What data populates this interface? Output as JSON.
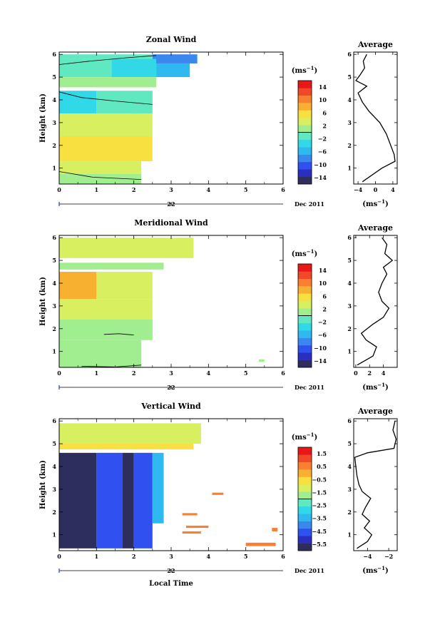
{
  "figure": {
    "xlabel": "Local Time",
    "date_label": "Dec 2011",
    "date_day": "22",
    "unit_label": "(ms",
    "unit_exp": "−1",
    "unit_close": ")",
    "average_title": "Average",
    "ylabel": "Height (km)"
  },
  "colormap": [
    "#2e2e5e",
    "#2a2fc0",
    "#3050f0",
    "#3a88ee",
    "#30b8f0",
    "#30d8e8",
    "#60e8c0",
    "#a0ee90",
    "#d8f060",
    "#f8e040",
    "#f8b030",
    "#f88030",
    "#f04828",
    "#e81818"
  ],
  "chart_data": [
    {
      "type": "heatmap",
      "title": "Zonal Wind",
      "xlim": [
        0,
        6
      ],
      "ylim": [
        0.3,
        6.1
      ],
      "xticks": [
        0,
        1,
        2,
        3,
        4,
        5,
        6
      ],
      "yticks": [
        1,
        2,
        3,
        4,
        5,
        6
      ],
      "colorbar": {
        "ticks": [
          "14",
          "10",
          "6",
          "2",
          "−2",
          "−6",
          "−10",
          "−14"
        ],
        "vmin": -16,
        "vmax": 16,
        "zero_line": 0
      },
      "cells": [
        {
          "x0": 0,
          "x1": 2.5,
          "y0": 5.8,
          "y1": 6.0,
          "v": -2
        },
        {
          "x0": 2.5,
          "x1": 3.7,
          "y0": 5.6,
          "y1": 6.0,
          "v": -8
        },
        {
          "x0": 0,
          "x1": 1.4,
          "y0": 5.0,
          "y1": 5.8,
          "v": -1
        },
        {
          "x0": 1.4,
          "x1": 2.6,
          "y0": 5.0,
          "y1": 5.8,
          "v": -4
        },
        {
          "x0": 2.6,
          "x1": 3.5,
          "y0": 5.0,
          "y1": 5.6,
          "v": -6
        },
        {
          "x0": 0,
          "x1": 2.6,
          "y0": 4.55,
          "y1": 5.0,
          "v": 1
        },
        {
          "x0": 0,
          "x1": 1.0,
          "y0": 3.4,
          "y1": 4.4,
          "v": -3
        },
        {
          "x0": 1.0,
          "x1": 2.5,
          "y0": 3.4,
          "y1": 4.4,
          "v": -2
        },
        {
          "x0": 0,
          "x1": 2.5,
          "y0": 2.4,
          "y1": 3.4,
          "v": 3
        },
        {
          "x0": 0,
          "x1": 2.5,
          "y0": 1.3,
          "y1": 2.4,
          "v": 5
        },
        {
          "x0": 0,
          "x1": 2.2,
          "y0": 0.75,
          "y1": 1.3,
          "v": 3
        },
        {
          "x0": 0,
          "x1": 2.2,
          "y0": 0.3,
          "y1": 0.75,
          "v": 0
        }
      ],
      "contours": [
        [
          [
            0,
            4.35
          ],
          [
            0.6,
            4.1
          ],
          [
            1.5,
            3.95
          ],
          [
            2.5,
            3.8
          ]
        ],
        [
          [
            0,
            5.55
          ],
          [
            0.8,
            5.7
          ],
          [
            1.8,
            5.85
          ],
          [
            2.6,
            5.95
          ]
        ],
        [
          [
            0,
            0.85
          ],
          [
            0.9,
            0.6
          ],
          [
            2.2,
            0.5
          ]
        ]
      ],
      "avg_xticks": [
        "−4",
        "0",
        "4"
      ],
      "avg_xlim": [
        -5,
        5
      ],
      "avg_yticks": [
        "1",
        "2",
        "3",
        "4",
        "5",
        "6"
      ],
      "avg_profile": [
        [
          -3,
          0.4
        ],
        [
          1.5,
          1.0
        ],
        [
          4.5,
          1.3
        ],
        [
          4.3,
          1.6
        ],
        [
          3.5,
          2.0
        ],
        [
          2.5,
          2.5
        ],
        [
          1.0,
          3.0
        ],
        [
          -1.5,
          3.5
        ],
        [
          -3.0,
          3.9
        ],
        [
          -4.0,
          4.3
        ],
        [
          -2.0,
          4.6
        ],
        [
          -4.5,
          4.85
        ],
        [
          -3.5,
          5.1
        ],
        [
          -2.5,
          5.4
        ],
        [
          -2.8,
          5.7
        ],
        [
          -2.0,
          6.0
        ]
      ],
      "avg_xlabel": "(ms"
    },
    {
      "type": "heatmap",
      "title": "Meridional Wind",
      "xlim": [
        0,
        6
      ],
      "ylim": [
        0.3,
        6.1
      ],
      "xticks": [
        0,
        1,
        2,
        3,
        4,
        5,
        6
      ],
      "yticks": [
        1,
        2,
        3,
        4,
        5,
        6
      ],
      "colorbar": {
        "ticks": [
          "14",
          "10",
          "6",
          "2",
          "−2",
          "−6",
          "−10",
          "−14"
        ],
        "vmin": -16,
        "vmax": 16,
        "zero_line": 0
      },
      "cells": [
        {
          "x0": 0,
          "x1": 3.6,
          "y0": 5.1,
          "y1": 6.0,
          "v": 3
        },
        {
          "x0": 0,
          "x1": 2.8,
          "y0": 4.6,
          "y1": 4.9,
          "v": 2
        },
        {
          "x0": 0,
          "x1": 1.0,
          "y0": 3.3,
          "y1": 4.5,
          "v": 7
        },
        {
          "x0": 1.0,
          "x1": 2.5,
          "y0": 3.3,
          "y1": 4.5,
          "v": 3
        },
        {
          "x0": 0,
          "x1": 2.5,
          "y0": 2.4,
          "y1": 3.3,
          "v": 4
        },
        {
          "x0": 0,
          "x1": 2.5,
          "y0": 1.5,
          "y1": 2.4,
          "v": 2
        },
        {
          "x0": 0,
          "x1": 2.2,
          "y0": 0.3,
          "y1": 1.5,
          "v": 1
        },
        {
          "x0": 5.35,
          "x1": 5.5,
          "y0": 0.55,
          "y1": 0.65,
          "v": 2
        }
      ],
      "contours": [
        [
          [
            1.2,
            1.75
          ],
          [
            1.6,
            1.78
          ],
          [
            2.0,
            1.72
          ]
        ],
        [
          [
            0.6,
            0.35
          ],
          [
            1.5,
            0.32
          ],
          [
            2.2,
            0.4
          ]
        ]
      ],
      "avg_xticks": [
        "0",
        "2",
        "4"
      ],
      "avg_xlim": [
        -0.3,
        6
      ],
      "avg_yticks": [
        "1",
        "2",
        "3",
        "4",
        "5",
        "6"
      ],
      "avg_profile": [
        [
          0.2,
          0.4
        ],
        [
          2.5,
          0.8
        ],
        [
          3.0,
          1.2
        ],
        [
          1.5,
          1.5
        ],
        [
          0.8,
          1.8
        ],
        [
          2.5,
          2.2
        ],
        [
          4.0,
          2.5
        ],
        [
          4.8,
          2.9
        ],
        [
          3.8,
          3.2
        ],
        [
          3.3,
          3.6
        ],
        [
          3.8,
          4.0
        ],
        [
          4.5,
          4.4
        ],
        [
          4.0,
          4.7
        ],
        [
          5.3,
          5.0
        ],
        [
          4.2,
          5.3
        ],
        [
          4.5,
          5.7
        ],
        [
          3.8,
          6.0
        ]
      ],
      "avg_xlabel": "(ms"
    },
    {
      "type": "heatmap",
      "title": "Vertical Wind",
      "xlim": [
        0,
        6
      ],
      "ylim": [
        0.3,
        6.1
      ],
      "xticks": [
        0,
        1,
        2,
        3,
        4,
        5,
        6
      ],
      "yticks": [
        1,
        2,
        3,
        4,
        5,
        6
      ],
      "colorbar": {
        "ticks": [
          "1.5",
          "0.5",
          "−0.5",
          "−1.5",
          "−2.5",
          "−3.5",
          "−4.5",
          "−5.5"
        ],
        "vmin": -6,
        "vmax": 2,
        "zero_line": -2
      },
      "cells": [
        {
          "x0": 0,
          "x1": 3.8,
          "y0": 5.0,
          "y1": 5.9,
          "v": -1.0
        },
        {
          "x0": 0,
          "x1": 3.6,
          "y0": 4.75,
          "y1": 5.0,
          "v": -0.8
        },
        {
          "x0": 0,
          "x1": 1.0,
          "y0": 0.4,
          "y1": 4.6,
          "v": -5.8
        },
        {
          "x0": 1.0,
          "x1": 1.7,
          "y0": 0.4,
          "y1": 4.6,
          "v": -4.8
        },
        {
          "x0": 1.7,
          "x1": 2.0,
          "y0": 0.4,
          "y1": 4.6,
          "v": -5.6
        },
        {
          "x0": 2.0,
          "x1": 2.5,
          "y0": 0.4,
          "y1": 4.6,
          "v": -4.3
        },
        {
          "x0": 2.5,
          "x1": 2.8,
          "y0": 1.5,
          "y1": 4.6,
          "v": -3.3
        },
        {
          "x0": 3.3,
          "x1": 3.7,
          "y0": 1.85,
          "y1": 1.95,
          "v": 0.6
        },
        {
          "x0": 3.4,
          "x1": 4.0,
          "y0": 1.3,
          "y1": 1.4,
          "v": 0.6
        },
        {
          "x0": 3.3,
          "x1": 3.8,
          "y0": 1.05,
          "y1": 1.15,
          "v": 0.6
        },
        {
          "x0": 4.1,
          "x1": 4.4,
          "y0": 2.75,
          "y1": 2.85,
          "v": 0.6
        },
        {
          "x0": 5.0,
          "x1": 5.8,
          "y0": 0.5,
          "y1": 0.65,
          "v": 0.6
        },
        {
          "x0": 5.7,
          "x1": 5.85,
          "y0": 1.15,
          "y1": 1.3,
          "v": 0.6
        }
      ],
      "contours": [],
      "avg_xticks": [
        "−4",
        "−2"
      ],
      "avg_xlim": [
        -5.3,
        -1.2
      ],
      "avg_yticks": [
        "1",
        "2",
        "3",
        "4",
        "5",
        "6"
      ],
      "avg_profile": [
        [
          -5.0,
          0.4
        ],
        [
          -4.0,
          0.7
        ],
        [
          -3.6,
          1.0
        ],
        [
          -4.3,
          1.3
        ],
        [
          -3.8,
          1.6
        ],
        [
          -4.5,
          1.9
        ],
        [
          -4.2,
          2.2
        ],
        [
          -3.7,
          2.6
        ],
        [
          -4.5,
          2.9
        ],
        [
          -4.8,
          3.2
        ],
        [
          -5.0,
          3.6
        ],
        [
          -5.1,
          4.0
        ],
        [
          -5.2,
          4.4
        ],
        [
          -4.0,
          4.6
        ],
        [
          -1.5,
          4.8
        ],
        [
          -1.3,
          5.2
        ],
        [
          -1.6,
          5.6
        ],
        [
          -1.4,
          6.0
        ]
      ],
      "avg_xlabel": "(ms"
    }
  ]
}
